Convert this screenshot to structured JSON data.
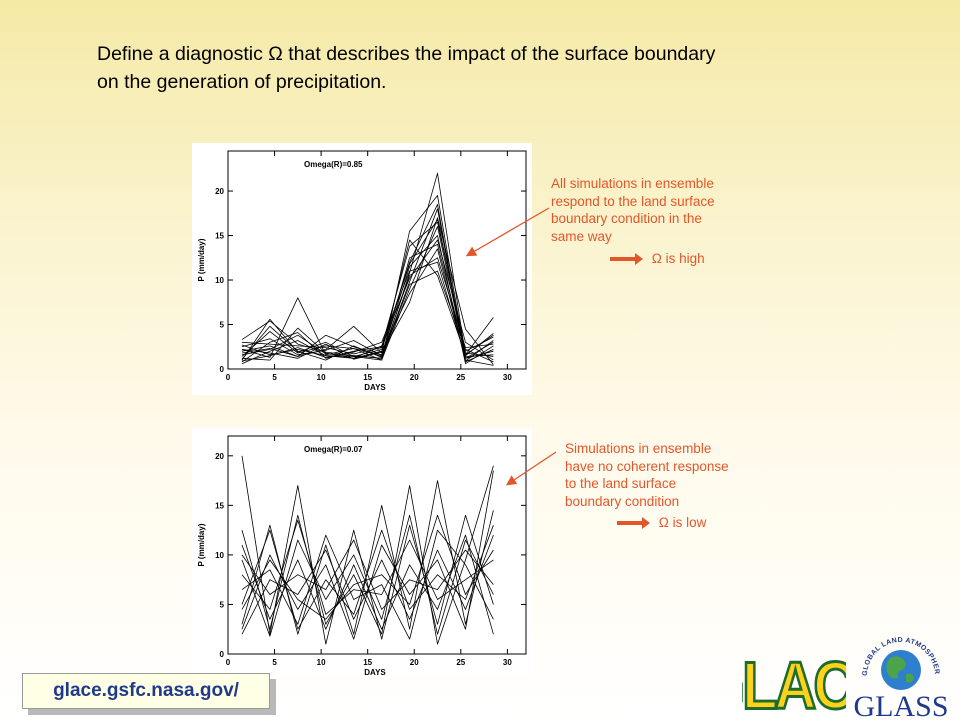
{
  "slide": {
    "title_line1": "Define a diagnostic Ω that describes the impact of the surface boundary",
    "title_line2": "on the generation of precipitation."
  },
  "annotations": {
    "top": [
      "All simulations in ensemble",
      "respond to the land surface",
      "boundary condition in the",
      "same way"
    ],
    "top_result": "Ω is high",
    "bottom": [
      "Simulations in ensemble",
      "have no coherent response",
      "to the land surface",
      "boundary condition"
    ],
    "bottom_result": "Ω is low",
    "arrow_color": "#e2572a"
  },
  "footer": {
    "url": "glace.gsfc.nasa.gov/",
    "glace_logo_text": "GLACE",
    "glass_logo_text": "GLASS",
    "glass_ring_text": "GLOBAL LAND ATMOSPHERE SYSTEM STUDY"
  },
  "chart_data": [
    {
      "type": "line",
      "label": "Omega(R)=0.85",
      "xlabel": "DAYS",
      "ylabel": "P (mm/day)",
      "xlim": [
        0,
        32
      ],
      "ylim": [
        0,
        24.5
      ],
      "xticks": [
        0,
        5,
        10,
        15,
        20,
        25,
        30
      ],
      "yticks": [
        0,
        5,
        10,
        15,
        20
      ],
      "x": [
        1.5,
        4.5,
        7.5,
        10.5,
        13.5,
        16.5,
        19.5,
        22.5,
        25.5,
        28.5
      ],
      "series": [
        {
          "values": [
            3.3,
            5.4,
            2.8,
            1.9,
            1.5,
            1.2,
            10.8,
            22.0,
            1.5,
            4.0
          ]
        },
        {
          "values": [
            2.2,
            1.3,
            8.0,
            1.6,
            2.3,
            1.0,
            15.5,
            19.5,
            1.2,
            3.0
          ]
        },
        {
          "values": [
            1.0,
            5.6,
            1.9,
            3.0,
            1.4,
            2.2,
            12.0,
            18.5,
            0.8,
            2.2
          ]
        },
        {
          "values": [
            1.8,
            2.3,
            1.4,
            2.2,
            4.8,
            1.8,
            7.5,
            17.0,
            4.5,
            0.5
          ]
        },
        {
          "values": [
            0.8,
            3.0,
            4.1,
            1.2,
            2.0,
            2.5,
            13.8,
            16.5,
            2.0,
            3.6
          ]
        },
        {
          "values": [
            2.7,
            1.6,
            2.2,
            1.5,
            1.4,
            1.0,
            9.0,
            16.0,
            1.4,
            1.6
          ]
        },
        {
          "values": [
            1.4,
            4.2,
            1.8,
            2.6,
            2.3,
            1.6,
            11.5,
            15.0,
            0.6,
            2.6
          ]
        },
        {
          "values": [
            0.6,
            2.0,
            3.2,
            1.5,
            1.2,
            2.6,
            10.2,
            14.5,
            3.0,
            1.0
          ]
        },
        {
          "values": [
            2.0,
            2.6,
            1.4,
            3.8,
            2.5,
            1.4,
            12.5,
            14.0,
            1.6,
            3.8
          ]
        },
        {
          "values": [
            1.2,
            1.0,
            4.6,
            1.8,
            1.2,
            2.0,
            8.5,
            13.5,
            1.0,
            0.4
          ]
        },
        {
          "values": [
            2.5,
            3.4,
            1.6,
            2.1,
            3.2,
            1.5,
            10.5,
            12.5,
            2.4,
            2.8
          ]
        },
        {
          "values": [
            0.9,
            1.5,
            2.4,
            1.3,
            1.9,
            3.0,
            11.0,
            12.0,
            1.2,
            2.0
          ]
        },
        {
          "values": [
            1.6,
            2.2,
            3.8,
            1.7,
            1.5,
            1.2,
            9.5,
            11.0,
            2.2,
            0.8
          ]
        },
        {
          "values": [
            2.2,
            1.8,
            1.2,
            2.8,
            1.1,
            1.9,
            14.5,
            10.5,
            1.6,
            5.8
          ]
        },
        {
          "values": [
            1.1,
            4.8,
            2.0,
            1.0,
            2.6,
            1.3,
            9.8,
            18.0,
            0.9,
            3.2
          ]
        },
        {
          "values": [
            3.0,
            2.8,
            2.6,
            2.4,
            1.7,
            2.4,
            11.8,
            16.8,
            1.8,
            1.4
          ]
        }
      ]
    },
    {
      "type": "line",
      "label": "Omega(R)=0.07",
      "xlabel": "DAYS",
      "ylabel": "P (mm/day)",
      "xlim": [
        0,
        32
      ],
      "ylim": [
        0,
        22
      ],
      "xticks": [
        0,
        5,
        10,
        15,
        20,
        25,
        30
      ],
      "yticks": [
        0,
        5,
        10,
        15,
        20
      ],
      "x": [
        1.5,
        4.5,
        7.5,
        10.5,
        13.5,
        16.5,
        19.5,
        22.5,
        25.5,
        28.5
      ],
      "series": [
        {
          "values": [
            20.0,
            2.0,
            17.0,
            1.0,
            12.5,
            1.5,
            13.0,
            3.0,
            14.0,
            5.0
          ]
        },
        {
          "values": [
            12.5,
            2.5,
            14.0,
            3.0,
            8.0,
            2.0,
            17.0,
            1.0,
            9.5,
            19.0
          ]
        },
        {
          "values": [
            3.0,
            13.0,
            2.0,
            11.0,
            2.0,
            15.0,
            2.5,
            17.5,
            3.0,
            14.5
          ]
        },
        {
          "values": [
            9.5,
            1.8,
            11.5,
            5.5,
            10.0,
            3.5,
            14.0,
            2.0,
            11.5,
            6.0
          ]
        },
        {
          "values": [
            2.5,
            10.0,
            4.5,
            9.0,
            1.5,
            11.0,
            6.0,
            9.5,
            2.5,
            18.5
          ]
        },
        {
          "values": [
            6.5,
            8.5,
            3.0,
            12.0,
            5.5,
            7.0,
            1.5,
            12.5,
            9.0,
            3.5
          ]
        },
        {
          "values": [
            11.0,
            3.5,
            9.5,
            2.5,
            9.0,
            2.5,
            9.0,
            4.5,
            12.0,
            2.0
          ]
        },
        {
          "values": [
            5.0,
            12.5,
            2.5,
            7.5,
            4.0,
            12.5,
            4.5,
            8.0,
            5.5,
            13.0
          ]
        },
        {
          "values": [
            8.0,
            4.5,
            13.5,
            4.0,
            6.5,
            6.0,
            11.5,
            5.5,
            7.5,
            9.5
          ]
        },
        {
          "values": [
            2.0,
            7.5,
            6.0,
            10.5,
            3.5,
            9.5,
            3.5,
            10.5,
            4.5,
            12.0
          ]
        },
        {
          "values": [
            10.0,
            6.0,
            8.0,
            6.5,
            11.5,
            4.5,
            7.5,
            6.5,
            10.5,
            7.0
          ]
        },
        {
          "values": [
            4.5,
            9.5,
            5.5,
            3.5,
            7.0,
            8.0,
            5.0,
            14.0,
            6.0,
            10.5
          ]
        }
      ]
    }
  ]
}
